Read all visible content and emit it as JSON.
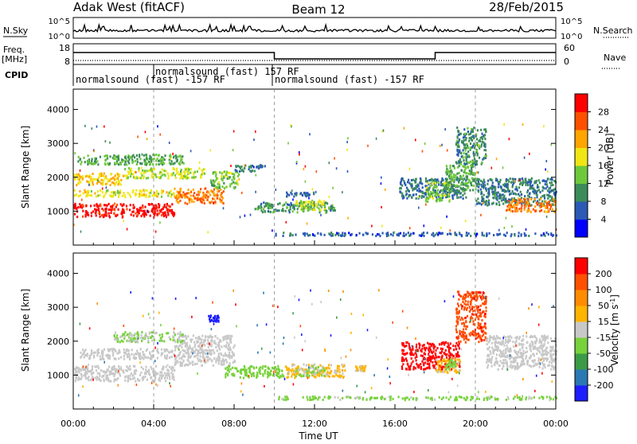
{
  "header": {
    "station": "Adak West (fitACF)",
    "beam": "Beam 12",
    "date": "28/Feb/2015"
  },
  "top_panels": {
    "nsky_label": "N.Sky",
    "nsky_ticks": [
      "10^5",
      "10^0"
    ],
    "nsearch_label": "N.Search",
    "nsearch_ticks": [
      "10^5",
      "10^0"
    ],
    "freq_label": "Freq.",
    "freq_unit": "[MHz]",
    "freq_ticks": [
      "18",
      "8"
    ],
    "nave_label": "Nave",
    "nave_ticks": [
      "60",
      "0"
    ],
    "cpid_label": "CPID",
    "cpid_segments": [
      {
        "label": "normalsound (fast) -157 RF",
        "start_hour": 0,
        "end_hour": 4
      },
      {
        "label": "normalsound (fast) 157 RF",
        "start_hour": 4,
        "end_hour": 10
      },
      {
        "label": "normalsound (fast) -157 RF",
        "start_hour": 10,
        "end_hour": 24
      }
    ],
    "freq_steps": [
      {
        "start_hour": 0,
        "end_hour": 10,
        "level": "high"
      },
      {
        "start_hour": 10,
        "end_hour": 18,
        "level": "low"
      },
      {
        "start_hour": 18,
        "end_hour": 24,
        "level": "high"
      }
    ]
  },
  "chart_data": [
    {
      "type": "heatmap",
      "name": "power",
      "ylabel": "Slant Range [km]",
      "xlabel": "Time UT",
      "ylim": [
        0,
        4600
      ],
      "yticks": [
        1000,
        2000,
        3000,
        4000
      ],
      "xlim_hours": [
        0,
        24
      ],
      "xticks": [
        "00:00",
        "04:00",
        "08:00",
        "12:00",
        "16:00",
        "20:00",
        "00:00"
      ],
      "colorbar": {
        "label": "Power [dB]",
        "ticks": [
          4,
          8,
          12,
          16,
          20,
          24,
          28
        ],
        "range": [
          0,
          32
        ],
        "colors": [
          "#0000ff",
          "#2a5ab5",
          "#3c8c5a",
          "#6ec83c",
          "#f0e614",
          "#ffa500",
          "#ff5000",
          "#ff0000"
        ]
      },
      "features": [
        {
          "t0": 0.0,
          "t1": 5.0,
          "r0": 850,
          "r1": 1250,
          "value": 30
        },
        {
          "t0": 5.0,
          "t1": 7.5,
          "r0": 1250,
          "r1": 1700,
          "value": 24
        },
        {
          "t0": 6.8,
          "t1": 8.2,
          "r0": 1700,
          "r1": 2200,
          "value": 14
        },
        {
          "t0": 0.0,
          "t1": 5.0,
          "r0": 1450,
          "r1": 1650,
          "value": 18
        },
        {
          "t0": 0.0,
          "t1": 2.5,
          "r0": 1800,
          "r1": 2150,
          "value": 20
        },
        {
          "t0": 2.5,
          "t1": 6.5,
          "r0": 2000,
          "r1": 2300,
          "value": 16
        },
        {
          "t0": 0.2,
          "t1": 5.5,
          "r0": 2400,
          "r1": 2700,
          "value": 12
        },
        {
          "t0": 8.0,
          "t1": 9.5,
          "r0": 2200,
          "r1": 2400,
          "value": 8
        },
        {
          "t0": 9.0,
          "t1": 13.0,
          "r0": 1000,
          "r1": 1300,
          "value": 10
        },
        {
          "t0": 11.0,
          "t1": 12.5,
          "r0": 1050,
          "r1": 1350,
          "value": 16
        },
        {
          "t0": 10.5,
          "t1": 12.0,
          "r0": 1450,
          "r1": 1600,
          "value": 7
        },
        {
          "t0": 16.2,
          "t1": 19.5,
          "r0": 1400,
          "r1": 2000,
          "value": 8
        },
        {
          "t0": 17.5,
          "t1": 18.7,
          "r0": 1300,
          "r1": 1900,
          "value": 14
        },
        {
          "t0": 18.5,
          "t1": 20.0,
          "r0": 1600,
          "r1": 2400,
          "value": 12
        },
        {
          "t0": 19.0,
          "t1": 20.5,
          "r0": 2400,
          "r1": 3500,
          "value": 10
        },
        {
          "t0": 20.0,
          "t1": 24.0,
          "r0": 1200,
          "r1": 2000,
          "value": 9
        },
        {
          "t0": 21.5,
          "t1": 24.0,
          "r0": 1000,
          "r1": 1400,
          "value": 24
        },
        {
          "t0": 10.0,
          "t1": 24.0,
          "r0": 300,
          "r1": 400,
          "value": 6
        }
      ]
    },
    {
      "type": "heatmap",
      "name": "velocity",
      "ylabel": "Slant Range [km]",
      "xlabel": "Time UT",
      "ylim": [
        0,
        4600
      ],
      "yticks": [
        1000,
        2000,
        3000,
        4000
      ],
      "xlim_hours": [
        0,
        24
      ],
      "xticks": [
        "00:00",
        "04:00",
        "08:00",
        "12:00",
        "16:00",
        "20:00",
        "00:00"
      ],
      "colorbar": {
        "label": "Velocity [m s^-1]",
        "ticks": [
          200,
          100,
          50,
          15,
          -15,
          -50,
          -100,
          -200
        ],
        "range": [
          -250,
          250
        ],
        "colors": [
          "#1e1eff",
          "#2a78b4",
          "#3c9b46",
          "#78d23c",
          "#c8c8c8",
          "#ffb400",
          "#ff8c00",
          "#ff5000",
          "#ff0000"
        ]
      },
      "features": [
        {
          "t0": 0.0,
          "t1": 5.0,
          "r0": 850,
          "r1": 1300,
          "value": 0
        },
        {
          "t0": 5.0,
          "t1": 8.0,
          "r0": 1300,
          "r1": 2200,
          "value": 0
        },
        {
          "t0": 0.3,
          "t1": 5.0,
          "r0": 1500,
          "r1": 1800,
          "value": 0
        },
        {
          "t0": 2.0,
          "t1": 5.5,
          "r0": 2000,
          "r1": 2300,
          "value": -30
        },
        {
          "t0": 6.7,
          "t1": 7.2,
          "r0": 2600,
          "r1": 2800,
          "value": -220
        },
        {
          "t0": 7.5,
          "t1": 10.5,
          "r0": 950,
          "r1": 1300,
          "value": -60
        },
        {
          "t0": 10.5,
          "t1": 13.5,
          "r0": 950,
          "r1": 1350,
          "value": 40
        },
        {
          "t0": 11.0,
          "t1": 12.5,
          "r0": 1000,
          "r1": 1300,
          "value": -30
        },
        {
          "t0": 14.0,
          "t1": 14.5,
          "r0": 1150,
          "r1": 1300,
          "value": 40
        },
        {
          "t0": 16.3,
          "t1": 19.2,
          "r0": 1200,
          "r1": 2000,
          "value": 220
        },
        {
          "t0": 18.0,
          "t1": 19.2,
          "r0": 1100,
          "r1": 1500,
          "value": 40
        },
        {
          "t0": 18.5,
          "t1": 19.0,
          "r0": 1200,
          "r1": 1500,
          "value": -60
        },
        {
          "t0": 19.0,
          "t1": 20.5,
          "r0": 2000,
          "r1": 3500,
          "value": 180
        },
        {
          "t0": 20.5,
          "t1": 24.0,
          "r0": 1200,
          "r1": 2200,
          "value": 0
        },
        {
          "t0": 10.0,
          "t1": 24.0,
          "r0": 300,
          "r1": 400,
          "value": -40
        }
      ]
    }
  ]
}
